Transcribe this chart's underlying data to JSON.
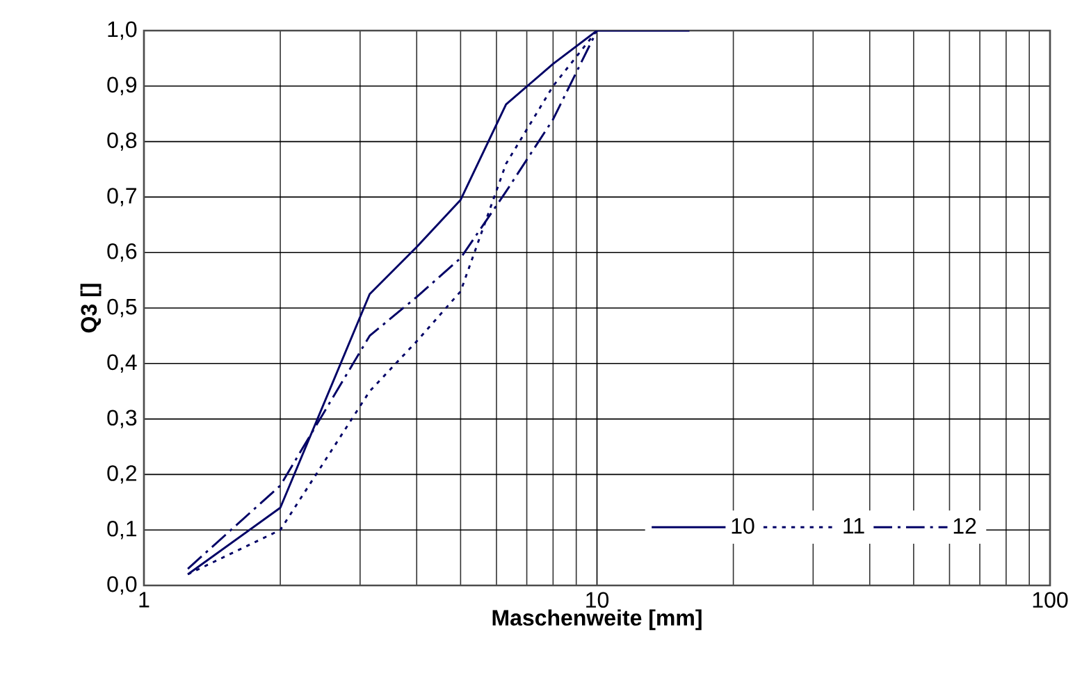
{
  "chart_data": {
    "type": "line",
    "xlabel": "Maschenweite [mm]",
    "ylabel": "Q3 []",
    "x": [
      1.25,
      2,
      3.15,
      4,
      5,
      6.3,
      8,
      10,
      16
    ],
    "series": [
      {
        "name": "10",
        "color": "#000066",
        "line_style": "solid",
        "values": [
          0.02,
          0.14,
          0.525,
          0.61,
          0.695,
          0.867,
          0.94,
          1.0,
          1.0
        ]
      },
      {
        "name": "11",
        "color": "#000066",
        "line_style": "dotted",
        "values": [
          0.02,
          0.1,
          0.35,
          0.44,
          0.53,
          0.76,
          0.9,
          1.0,
          null
        ]
      },
      {
        "name": "12",
        "color": "#000066",
        "line_style": "dashdot",
        "values": [
          0.03,
          0.18,
          0.45,
          0.52,
          0.59,
          0.71,
          0.84,
          1.0,
          null
        ]
      }
    ],
    "log": "x",
    "xlim": [
      1,
      100
    ],
    "xticks": [
      1,
      10,
      100
    ],
    "ylim": [
      0,
      1
    ],
    "yticks": [
      {
        "value": 0,
        "label": "0,0"
      },
      {
        "value": 0.1,
        "label": "0,1"
      },
      {
        "value": 0.2,
        "label": "0,2"
      },
      {
        "value": 0.3,
        "label": "0,3"
      },
      {
        "value": 0.4,
        "label": "0,4"
      },
      {
        "value": 0.5,
        "label": "0,5"
      },
      {
        "value": 0.6,
        "label": "0,6"
      },
      {
        "value": 0.7,
        "label": "0,7"
      },
      {
        "value": 0.8,
        "label": "0,8"
      },
      {
        "value": 0.9,
        "label": "0,9"
      },
      {
        "value": 1.0,
        "label": "1,0"
      }
    ],
    "grid": true,
    "legend": "bottom right",
    "marker": "none"
  }
}
